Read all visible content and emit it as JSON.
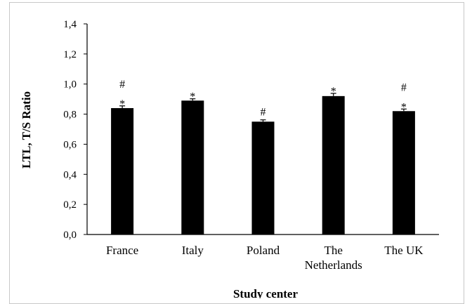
{
  "chart_data": {
    "type": "bar",
    "categories": [
      "France",
      "Italy",
      "Poland",
      "The Netherlands",
      "The UK"
    ],
    "category_lines": [
      [
        "France"
      ],
      [
        "Italy"
      ],
      [
        "Poland"
      ],
      [
        "The",
        "Netherlands"
      ],
      [
        "The UK"
      ]
    ],
    "values": [
      0.84,
      0.89,
      0.75,
      0.92,
      0.82
    ],
    "error": [
      0.015,
      0.012,
      0.012,
      0.018,
      0.014
    ],
    "significance": [
      [
        "#",
        "*"
      ],
      [
        "*"
      ],
      [
        "#"
      ],
      [
        "*"
      ],
      [
        "#",
        "*"
      ]
    ],
    "xlabel": "Study center",
    "ylabel": "LTL, T/S Ratio",
    "ylim": [
      0,
      1.4
    ],
    "yticks": [
      "0,0",
      "0,2",
      "0,4",
      "0,6",
      "0,8",
      "1,0",
      "1,2",
      "1,4"
    ],
    "bar_color": "#000000",
    "grid": false
  }
}
